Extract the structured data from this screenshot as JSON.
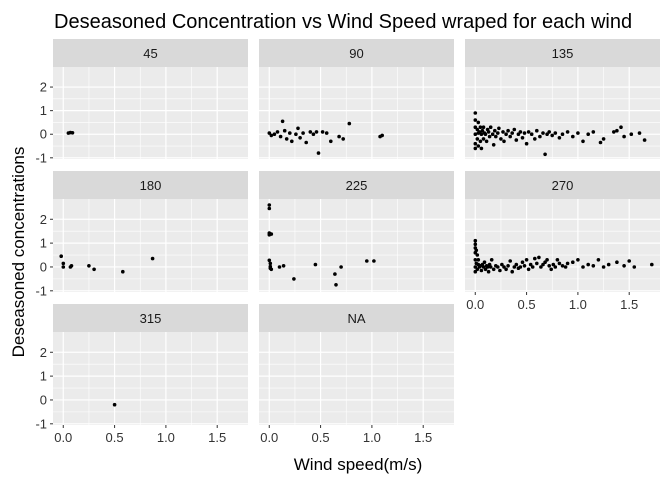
{
  "chart_data": {
    "type": "scatter",
    "title": "Deseasoned Concentration vs Wind Speed wraped for each wind",
    "xlabel": "Wind speed(m/s)",
    "ylabel": "Deseasoned concentrations",
    "xlim": [
      -0.1,
      1.8
    ],
    "ylim": [
      -1.05,
      2.85
    ],
    "xticks": [
      0.0,
      0.5,
      1.0,
      1.5
    ],
    "xtick_labels": [
      "0.0",
      "0.5",
      "1.0",
      "1.5"
    ],
    "yticks": [
      -1,
      0,
      1,
      2
    ],
    "ytick_labels": [
      "-1",
      "0",
      "1",
      "2"
    ],
    "grid": true,
    "legend": "none",
    "colors": {
      "panel_bg": "#ebebeb",
      "strip_bg": "#d9d9d9",
      "grid": "#ffffff",
      "point": "#000000",
      "text": "#333333",
      "title": "#000000"
    },
    "facets": [
      {
        "label": "45",
        "x": [
          0.05,
          0.07,
          0.09
        ],
        "y": [
          0.05,
          0.07,
          0.06
        ]
      },
      {
        "label": "90",
        "x": [
          0.0,
          0.02,
          0.05,
          0.08,
          0.11,
          0.13,
          0.15,
          0.17,
          0.2,
          0.22,
          0.26,
          0.28,
          0.3,
          0.33,
          0.36,
          0.4,
          0.43,
          0.46,
          0.48,
          0.52,
          0.56,
          0.6,
          0.68,
          0.72,
          0.78,
          1.08,
          1.1
        ],
        "y": [
          0.05,
          -0.05,
          0.0,
          0.1,
          -0.1,
          0.55,
          0.15,
          -0.2,
          0.05,
          -0.3,
          0.0,
          0.25,
          -0.15,
          0.05,
          -0.35,
          0.1,
          0.0,
          0.1,
          -0.8,
          0.1,
          0.05,
          -0.3,
          -0.1,
          -0.2,
          0.45,
          -0.1,
          -0.05
        ]
      },
      {
        "label": "135",
        "x": [
          0.0,
          0.0,
          0.0,
          0.0,
          0.0,
          0.0,
          0.02,
          0.02,
          0.03,
          0.03,
          0.03,
          0.04,
          0.05,
          0.05,
          0.06,
          0.06,
          0.07,
          0.08,
          0.08,
          0.09,
          0.1,
          0.11,
          0.12,
          0.13,
          0.14,
          0.15,
          0.17,
          0.18,
          0.19,
          0.2,
          0.22,
          0.23,
          0.25,
          0.27,
          0.28,
          0.3,
          0.32,
          0.34,
          0.36,
          0.38,
          0.4,
          0.42,
          0.44,
          0.46,
          0.48,
          0.5,
          0.52,
          0.55,
          0.58,
          0.6,
          0.63,
          0.66,
          0.68,
          0.7,
          0.72,
          0.75,
          0.78,
          0.82,
          0.85,
          0.9,
          0.95,
          1.0,
          1.05,
          1.1,
          1.15,
          1.22,
          1.25,
          1.35,
          1.38,
          1.42,
          1.45,
          1.52,
          1.6,
          1.65
        ],
        "y": [
          0.9,
          0.6,
          0.3,
          0.0,
          -0.4,
          -0.6,
          0.2,
          -0.2,
          0.5,
          0.05,
          -0.5,
          0.1,
          0.3,
          -0.3,
          0.0,
          -0.6,
          0.15,
          0.3,
          -0.2,
          0.05,
          0.0,
          -0.3,
          0.2,
          0.1,
          -0.1,
          0.3,
          0.0,
          -0.45,
          0.15,
          -0.1,
          0.05,
          0.25,
          -0.2,
          0.1,
          -0.3,
          0.0,
          0.15,
          -0.1,
          0.05,
          0.2,
          -0.25,
          0.0,
          0.1,
          -0.15,
          0.05,
          -0.4,
          0.1,
          0.0,
          -0.2,
          0.15,
          -0.1,
          0.05,
          -0.85,
          0.0,
          0.1,
          -0.05,
          0.05,
          -0.15,
          0.0,
          0.1,
          -0.1,
          0.05,
          -0.3,
          0.0,
          0.1,
          -0.35,
          -0.2,
          0.1,
          0.15,
          0.3,
          -0.1,
          0.0,
          0.05,
          -0.25
        ]
      },
      {
        "label": "180",
        "x": [
          -0.02,
          0.0,
          0.0,
          0.07,
          0.08,
          0.25,
          0.3,
          0.58,
          0.87
        ],
        "y": [
          0.45,
          0.15,
          0.0,
          0.0,
          0.05,
          0.05,
          -0.1,
          -0.2,
          0.35
        ]
      },
      {
        "label": "225",
        "x": [
          0.0,
          0.0,
          0.0,
          0.0,
          0.0,
          0.01,
          0.01,
          0.01,
          0.02,
          0.02,
          0.1,
          0.14,
          0.24,
          0.45,
          0.64,
          0.65,
          0.7,
          0.95,
          1.02
        ],
        "y": [
          2.6,
          2.45,
          1.42,
          1.35,
          0.28,
          0.15,
          0.02,
          -0.05,
          1.38,
          -0.1,
          0.0,
          0.05,
          -0.5,
          0.1,
          -0.3,
          -0.75,
          0.0,
          0.25,
          0.25
        ]
      },
      {
        "label": "270",
        "x": [
          0.0,
          0.0,
          0.0,
          0.0,
          0.0,
          0.0,
          0.0,
          0.01,
          0.01,
          0.02,
          0.02,
          0.03,
          0.03,
          0.04,
          0.05,
          0.06,
          0.07,
          0.08,
          0.09,
          0.1,
          0.11,
          0.12,
          0.13,
          0.14,
          0.15,
          0.16,
          0.18,
          0.2,
          0.22,
          0.24,
          0.26,
          0.28,
          0.3,
          0.32,
          0.34,
          0.36,
          0.38,
          0.4,
          0.42,
          0.44,
          0.46,
          0.48,
          0.5,
          0.52,
          0.54,
          0.56,
          0.58,
          0.6,
          0.62,
          0.64,
          0.66,
          0.68,
          0.7,
          0.72,
          0.74,
          0.76,
          0.78,
          0.8,
          0.82,
          0.85,
          0.88,
          0.9,
          0.95,
          1.0,
          1.05,
          1.1,
          1.15,
          1.2,
          1.25,
          1.3,
          1.38,
          1.45,
          1.5,
          1.55,
          1.72
        ],
        "y": [
          1.1,
          0.95,
          0.8,
          0.6,
          0.3,
          0.0,
          -0.2,
          0.7,
          0.15,
          0.5,
          -0.1,
          0.1,
          0.3,
          0.0,
          0.05,
          -0.15,
          0.1,
          0.0,
          0.2,
          -0.1,
          0.05,
          0.0,
          -0.2,
          0.1,
          0.0,
          0.3,
          -0.1,
          0.05,
          0.0,
          -0.15,
          0.1,
          0.0,
          -0.1,
          0.05,
          0.25,
          -0.2,
          0.0,
          0.1,
          -0.05,
          0.0,
          0.2,
          0.05,
          0.3,
          -0.1,
          0.1,
          0.0,
          0.35,
          0.15,
          0.4,
          0.0,
          0.1,
          0.2,
          0.3,
          0.05,
          -0.1,
          0.1,
          0.0,
          0.3,
          0.15,
          0.05,
          0.0,
          0.15,
          0.2,
          0.3,
          0.0,
          0.1,
          0.05,
          0.3,
          0.0,
          0.1,
          0.2,
          0.05,
          0.25,
          0.0,
          0.1
        ]
      },
      {
        "label": "315",
        "x": [
          0.5
        ],
        "y": [
          -0.2
        ]
      },
      {
        "label": "NA",
        "x": [],
        "y": []
      }
    ]
  }
}
